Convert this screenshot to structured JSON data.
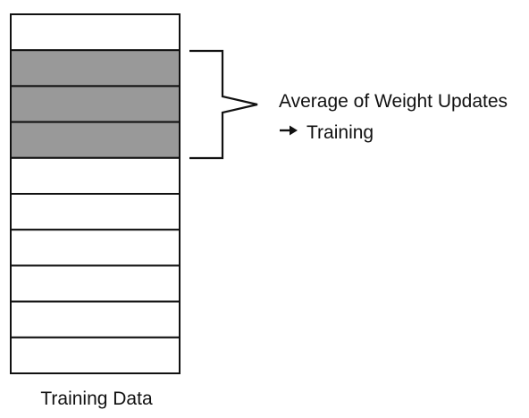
{
  "diagram": {
    "block_count": 10,
    "highlighted_indices": [
      1,
      2,
      3
    ],
    "highlight_color": "#999999",
    "block_fill_color": "#ffffff",
    "stroke_color": "#111111",
    "annotation_line1": "Average of Weight Updates",
    "annotation_arrow_icon": "right-arrow-icon",
    "annotation_line2": "Training",
    "caption": "Training Data"
  }
}
